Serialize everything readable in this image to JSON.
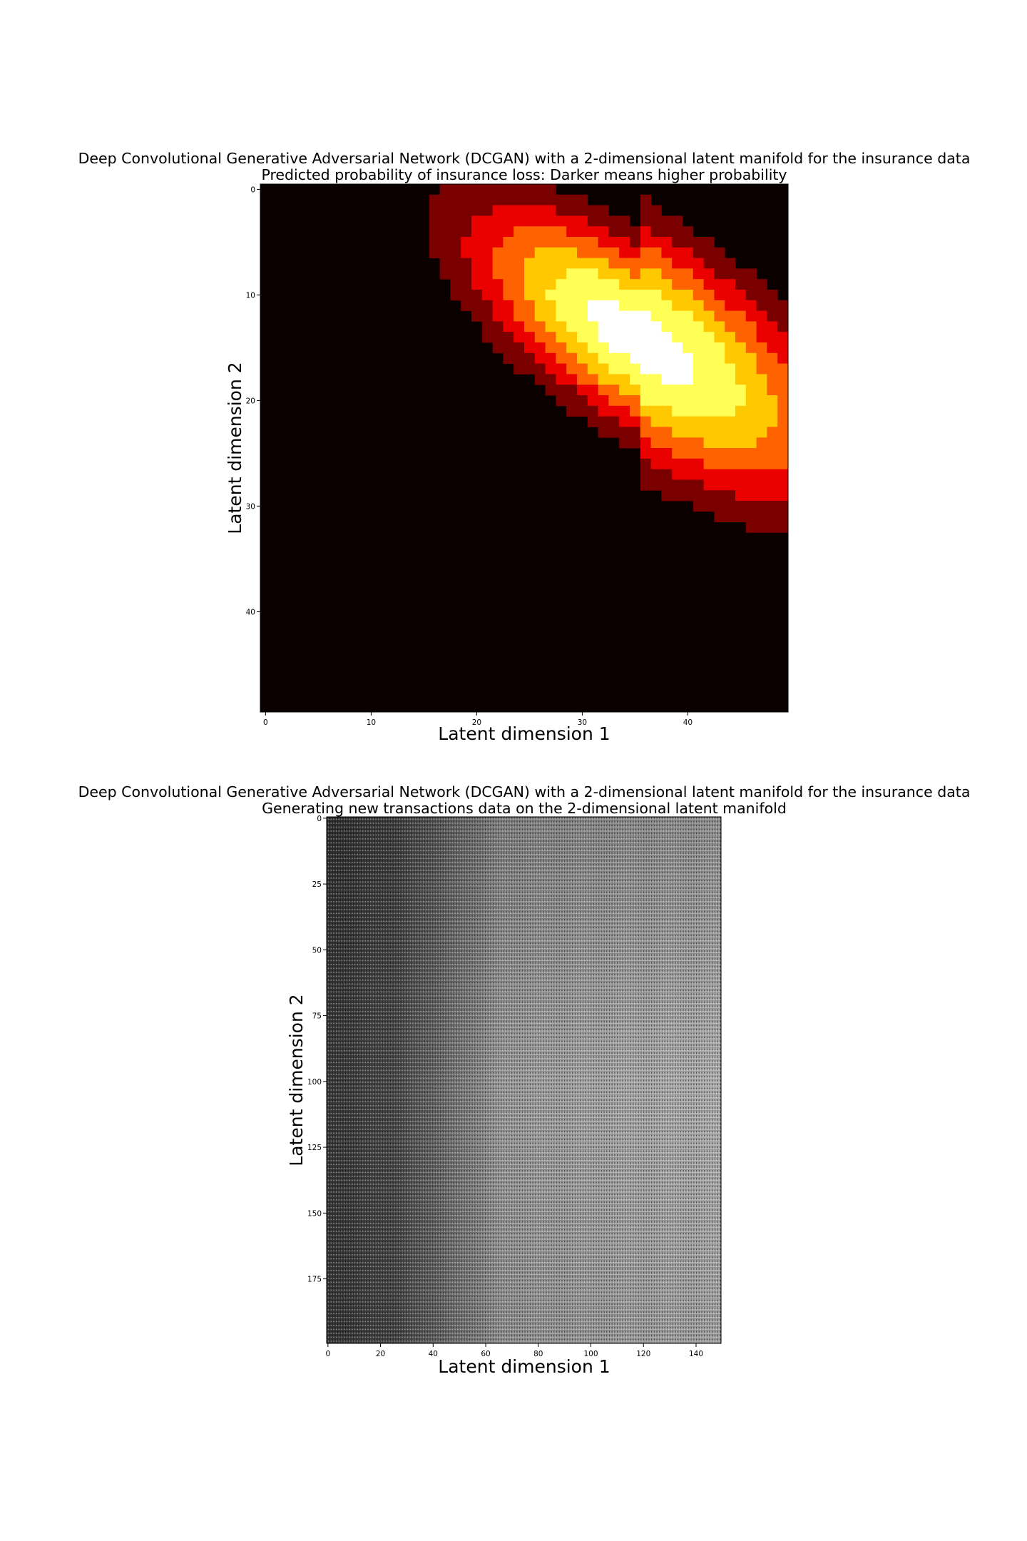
{
  "chart_data": [
    {
      "type": "heatmap",
      "title": "Deep Convolutional Generative Adversarial Network (DCGAN) with a 2-dimensional latent manifold for the insurance data",
      "subtitle": "Predicted probability of insurance loss: Darker means higher probability",
      "xlabel": "Latent dimension 1",
      "ylabel": "Latent dimension 2",
      "xticks": [
        0,
        10,
        20,
        30,
        40
      ],
      "yticks": [
        0,
        10,
        20,
        30,
        40
      ],
      "xlim": [
        -0.5,
        49.5
      ],
      "ylim": [
        49.5,
        -0.5
      ],
      "grid_shape": [
        50,
        50
      ],
      "colormap": "hot",
      "levels": 6,
      "palette": [
        "#0a0000",
        "#7a0000",
        "#eb0000",
        "#ff6200",
        "#ffc800",
        "#ffff55",
        "#ffffff"
      ],
      "peak_cell": {
        "x": 35,
        "y": 14
      }
    },
    {
      "type": "heatmap",
      "title": "Deep Convolutional Generative Adversarial Network (DCGAN) with a 2-dimensional latent manifold for the insurance data",
      "subtitle": "Generating new transactions data on the 2-dimensional latent manifold",
      "xlabel": "Latent dimension 1",
      "ylabel": "Latent dimension 2",
      "xticks": [
        0,
        20,
        40,
        60,
        80,
        100,
        120,
        140
      ],
      "yticks": [
        0,
        25,
        50,
        75,
        100,
        125,
        150,
        175
      ],
      "xlim": [
        -0.5,
        149.5
      ],
      "ylim": [
        199.5,
        -0.5
      ],
      "grid_shape": [
        200,
        150
      ],
      "colormap": "gray"
    }
  ]
}
